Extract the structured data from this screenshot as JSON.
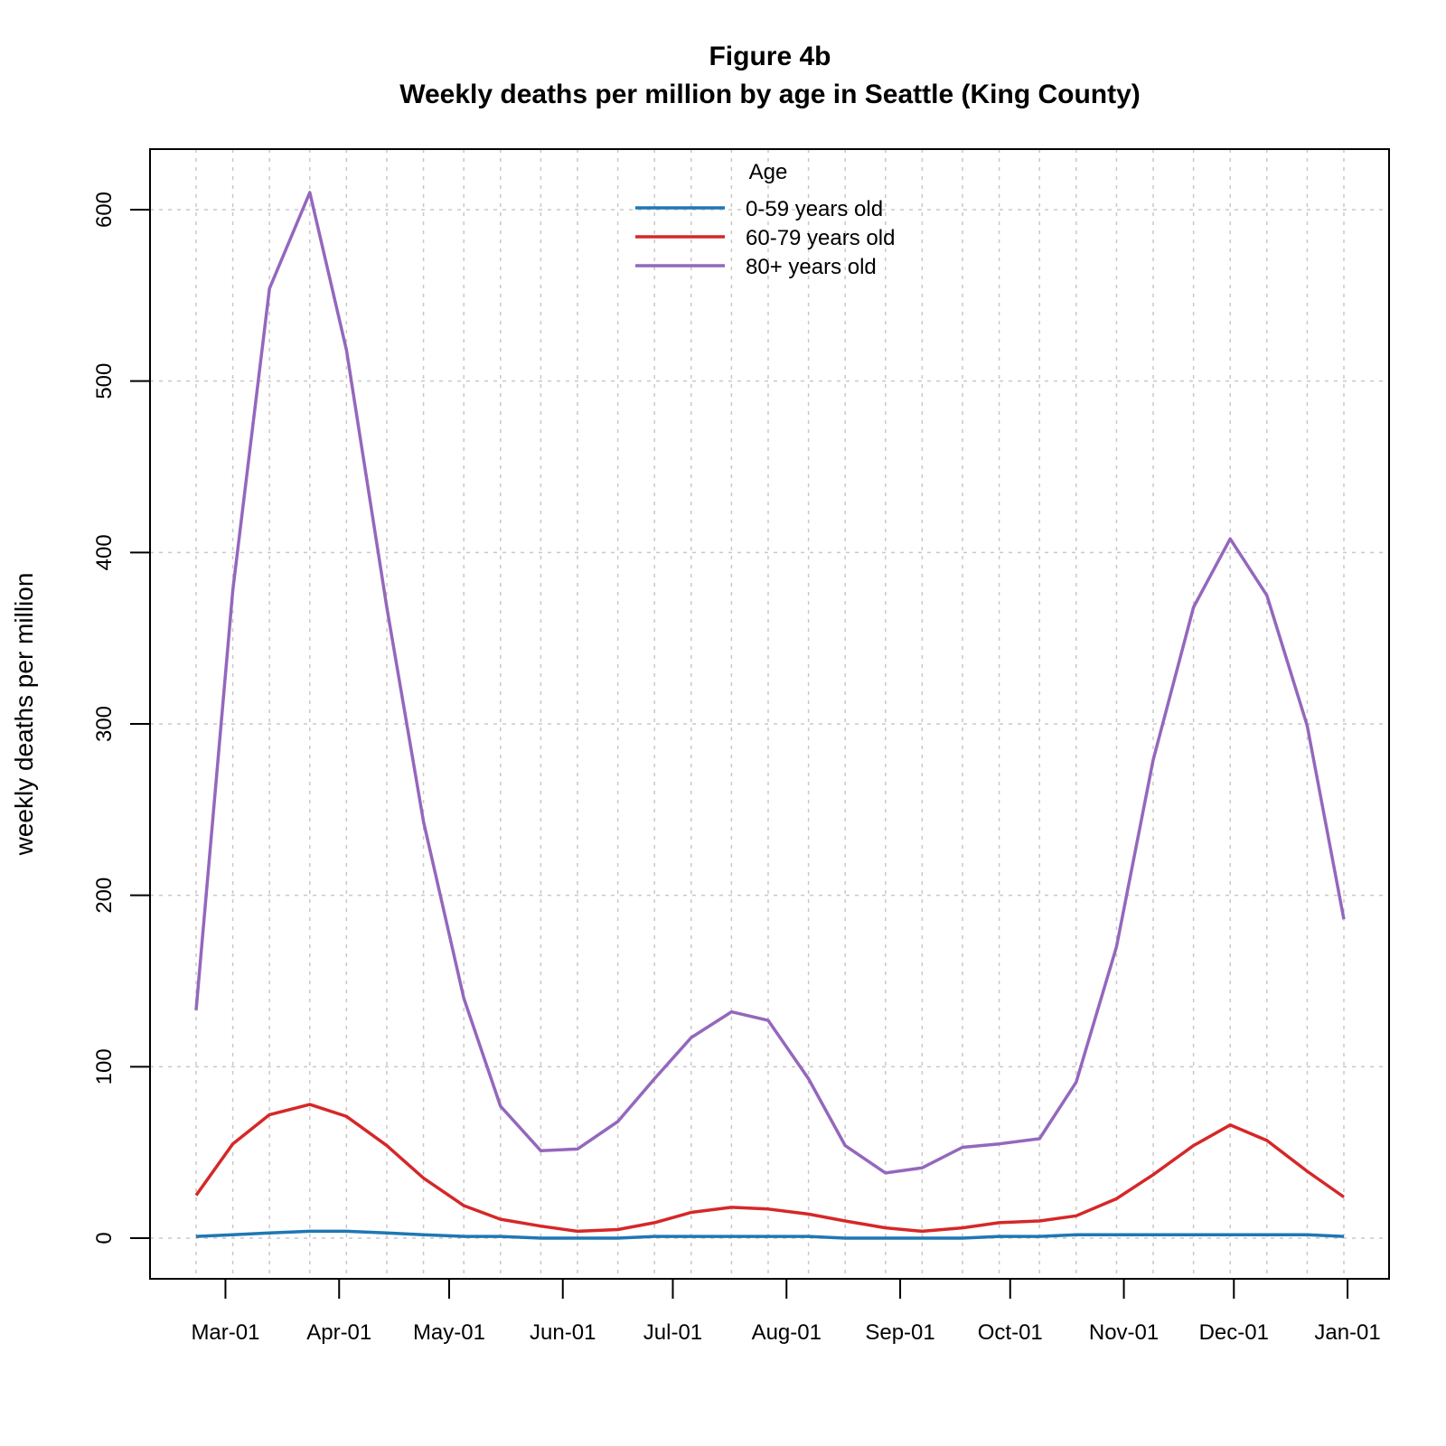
{
  "chart_data": {
    "type": "line",
    "title": "Figure 4b",
    "subtitle": "Weekly deaths per million by age in Seattle (King County)",
    "xlabel": "",
    "ylabel": "weekly deaths per million",
    "ylim": [
      -25,
      630
    ],
    "yticks": [
      0,
      100,
      200,
      300,
      400,
      500,
      600
    ],
    "grid": true,
    "legend": {
      "title": "Age",
      "placement": "top-center"
    },
    "xticks": [
      {
        "label": "Mar-01",
        "date": "2020-03-01"
      },
      {
        "label": "Apr-01",
        "date": "2020-04-01"
      },
      {
        "label": "May-01",
        "date": "2020-05-01"
      },
      {
        "label": "Jun-01",
        "date": "2020-06-01"
      },
      {
        "label": "Jul-01",
        "date": "2020-07-01"
      },
      {
        "label": "Aug-01",
        "date": "2020-08-01"
      },
      {
        "label": "Sep-01",
        "date": "2020-09-01"
      },
      {
        "label": "Oct-01",
        "date": "2020-10-01"
      },
      {
        "label": "Nov-01",
        "date": "2020-11-01"
      },
      {
        "label": "Dec-01",
        "date": "2020-12-01"
      },
      {
        "label": "Jan-01",
        "date": "2021-01-01"
      }
    ],
    "x": [
      "2020-02-22",
      "2020-03-03",
      "2020-03-13",
      "2020-03-24",
      "2020-04-03",
      "2020-04-14",
      "2020-04-24",
      "2020-05-05",
      "2020-05-15",
      "2020-05-26",
      "2020-06-05",
      "2020-06-16",
      "2020-06-26",
      "2020-07-06",
      "2020-07-17",
      "2020-07-27",
      "2020-08-07",
      "2020-08-17",
      "2020-08-28",
      "2020-09-07",
      "2020-09-18",
      "2020-09-28",
      "2020-10-09",
      "2020-10-19",
      "2020-10-30",
      "2020-11-09",
      "2020-11-20",
      "2020-11-30",
      "2020-12-10",
      "2020-12-21",
      "2020-12-31"
    ],
    "series": [
      {
        "name": "0-59 years old",
        "color": "#1f77b4",
        "values": [
          1,
          2,
          3,
          4,
          4,
          3,
          2,
          1,
          1,
          0,
          0,
          0,
          1,
          1,
          1,
          1,
          1,
          0,
          0,
          0,
          0,
          1,
          1,
          2,
          2,
          2,
          2,
          2,
          2,
          2,
          1
        ]
      },
      {
        "name": "60-79 years old",
        "color": "#d62728",
        "values": [
          25,
          55,
          72,
          78,
          71,
          54,
          35,
          19,
          11,
          7,
          4,
          5,
          9,
          15,
          18,
          17,
          14,
          10,
          6,
          4,
          6,
          9,
          10,
          13,
          23,
          37,
          54,
          66,
          57,
          39,
          24
        ]
      },
      {
        "name": "80+ years old",
        "color": "#9467bd",
        "values": [
          133,
          378,
          554,
          610,
          518,
          368,
          243,
          140,
          77,
          51,
          52,
          68,
          93,
          117,
          132,
          127,
          93,
          54,
          38,
          41,
          53,
          55,
          58,
          91,
          170,
          279,
          368,
          408,
          375,
          299,
          186
        ]
      }
    ]
  }
}
